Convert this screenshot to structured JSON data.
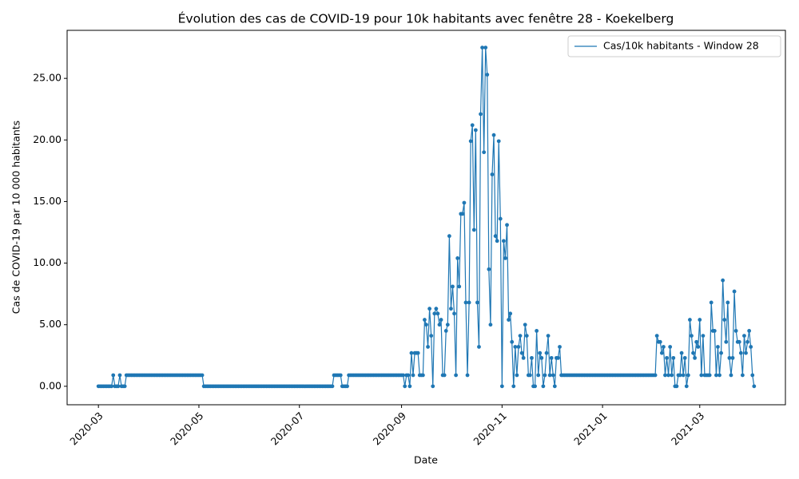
{
  "chart_data": {
    "type": "line",
    "title": "Évolution des cas de COVID-19 pour 10k habitants avec fenêtre 28 - Koekelberg",
    "x_label": "Date",
    "y_label": "Cas de COVID-19 par 10 000 habitants",
    "legend": "upper right",
    "marker": true,
    "xlim": [
      "2020-02-11",
      "2021-04-22"
    ],
    "ylim": [
      -1.5,
      28.9
    ],
    "xticks": [
      {
        "value": "2020-03-01",
        "label": "2020-03"
      },
      {
        "value": "2020-05-01",
        "label": "2020-05"
      },
      {
        "value": "2020-07-01",
        "label": "2020-07"
      },
      {
        "value": "2020-09-01",
        "label": "2020-09"
      },
      {
        "value": "2020-11-01",
        "label": "2020-11"
      },
      {
        "value": "2021-01-01",
        "label": "2021-01"
      },
      {
        "value": "2021-03-01",
        "label": "2021-03"
      }
    ],
    "yticks": [
      {
        "value": 0,
        "label": "0.00"
      },
      {
        "value": 5,
        "label": "5.00"
      },
      {
        "value": 10,
        "label": "10.00"
      },
      {
        "value": 15,
        "label": "15.00"
      },
      {
        "value": 20,
        "label": "20.00"
      },
      {
        "value": 25,
        "label": "25.00"
      }
    ],
    "x": [
      "2020-03-01",
      "2020-03-02",
      "2020-03-03",
      "2020-03-04",
      "2020-03-05",
      "2020-03-06",
      "2020-03-07",
      "2020-03-08",
      "2020-03-09",
      "2020-03-10",
      "2020-03-11",
      "2020-03-12",
      "2020-03-13",
      "2020-03-14",
      "2020-03-15",
      "2020-03-16",
      "2020-03-17",
      "2020-03-18",
      "2020-03-19",
      "2020-03-20",
      "2020-03-21",
      "2020-03-22",
      "2020-03-23",
      "2020-03-24",
      "2020-03-25",
      "2020-03-26",
      "2020-03-27",
      "2020-03-28",
      "2020-03-29",
      "2020-03-30",
      "2020-03-31",
      "2020-04-01",
      "2020-04-02",
      "2020-04-03",
      "2020-04-04",
      "2020-04-05",
      "2020-04-06",
      "2020-04-07",
      "2020-04-08",
      "2020-04-09",
      "2020-04-10",
      "2020-04-11",
      "2020-04-12",
      "2020-04-13",
      "2020-04-14",
      "2020-04-15",
      "2020-04-16",
      "2020-04-17",
      "2020-04-18",
      "2020-04-19",
      "2020-04-20",
      "2020-04-21",
      "2020-04-22",
      "2020-04-23",
      "2020-04-24",
      "2020-04-25",
      "2020-04-26",
      "2020-04-27",
      "2020-04-28",
      "2020-04-29",
      "2020-04-30",
      "2020-05-01",
      "2020-05-02",
      "2020-05-03",
      "2020-05-04",
      "2020-05-05",
      "2020-05-06",
      "2020-05-07",
      "2020-05-08",
      "2020-05-09",
      "2020-05-10",
      "2020-05-11",
      "2020-05-12",
      "2020-05-13",
      "2020-05-14",
      "2020-05-15",
      "2020-05-16",
      "2020-05-17",
      "2020-05-18",
      "2020-05-19",
      "2020-05-20",
      "2020-05-21",
      "2020-05-22",
      "2020-05-23",
      "2020-05-24",
      "2020-05-25",
      "2020-05-26",
      "2020-05-27",
      "2020-05-28",
      "2020-05-29",
      "2020-05-30",
      "2020-05-31",
      "2020-06-01",
      "2020-06-02",
      "2020-06-03",
      "2020-06-04",
      "2020-06-05",
      "2020-06-06",
      "2020-06-07",
      "2020-06-08",
      "2020-06-09",
      "2020-06-10",
      "2020-06-11",
      "2020-06-12",
      "2020-06-13",
      "2020-06-14",
      "2020-06-15",
      "2020-06-16",
      "2020-06-17",
      "2020-06-18",
      "2020-06-19",
      "2020-06-20",
      "2020-06-21",
      "2020-06-22",
      "2020-06-23",
      "2020-06-24",
      "2020-06-25",
      "2020-06-26",
      "2020-06-27",
      "2020-06-28",
      "2020-06-29",
      "2020-06-30",
      "2020-07-01",
      "2020-07-02",
      "2020-07-03",
      "2020-07-04",
      "2020-07-05",
      "2020-07-06",
      "2020-07-07",
      "2020-07-08",
      "2020-07-09",
      "2020-07-10",
      "2020-07-11",
      "2020-07-12",
      "2020-07-13",
      "2020-07-14",
      "2020-07-15",
      "2020-07-16",
      "2020-07-17",
      "2020-07-18",
      "2020-07-19",
      "2020-07-20",
      "2020-07-21",
      "2020-07-22",
      "2020-07-23",
      "2020-07-24",
      "2020-07-25",
      "2020-07-26",
      "2020-07-27",
      "2020-07-28",
      "2020-07-29",
      "2020-07-30",
      "2020-07-31",
      "2020-08-01",
      "2020-08-02",
      "2020-08-03",
      "2020-08-04",
      "2020-08-05",
      "2020-08-06",
      "2020-08-07",
      "2020-08-08",
      "2020-08-09",
      "2020-08-10",
      "2020-08-11",
      "2020-08-12",
      "2020-08-13",
      "2020-08-14",
      "2020-08-15",
      "2020-08-16",
      "2020-08-17",
      "2020-08-18",
      "2020-08-19",
      "2020-08-20",
      "2020-08-21",
      "2020-08-22",
      "2020-08-23",
      "2020-08-24",
      "2020-08-25",
      "2020-08-26",
      "2020-08-27",
      "2020-08-28",
      "2020-08-29",
      "2020-08-30",
      "2020-08-31",
      "2020-09-01",
      "2020-09-02",
      "2020-09-03",
      "2020-09-04",
      "2020-09-05",
      "2020-09-06",
      "2020-09-07",
      "2020-09-08",
      "2020-09-09",
      "2020-09-10",
      "2020-09-11",
      "2020-09-12",
      "2020-09-13",
      "2020-09-14",
      "2020-09-15",
      "2020-09-16",
      "2020-09-17",
      "2020-09-18",
      "2020-09-19",
      "2020-09-20",
      "2020-09-21",
      "2020-09-22",
      "2020-09-23",
      "2020-09-24",
      "2020-09-25",
      "2020-09-26",
      "2020-09-27",
      "2020-09-28",
      "2020-09-29",
      "2020-09-30",
      "2020-10-01",
      "2020-10-02",
      "2020-10-03",
      "2020-10-04",
      "2020-10-05",
      "2020-10-06",
      "2020-10-07",
      "2020-10-08",
      "2020-10-09",
      "2020-10-10",
      "2020-10-11",
      "2020-10-12",
      "2020-10-13",
      "2020-10-14",
      "2020-10-15",
      "2020-10-16",
      "2020-10-17",
      "2020-10-18",
      "2020-10-19",
      "2020-10-20",
      "2020-10-21",
      "2020-10-22",
      "2020-10-23",
      "2020-10-24",
      "2020-10-25",
      "2020-10-26",
      "2020-10-27",
      "2020-10-28",
      "2020-10-29",
      "2020-10-30",
      "2020-10-31",
      "2020-11-01",
      "2020-11-02",
      "2020-11-03",
      "2020-11-04",
      "2020-11-05",
      "2020-11-06",
      "2020-11-07",
      "2020-11-08",
      "2020-11-09",
      "2020-11-10",
      "2020-11-11",
      "2020-11-12",
      "2020-11-13",
      "2020-11-14",
      "2020-11-15",
      "2020-11-16",
      "2020-11-17",
      "2020-11-18",
      "2020-11-19",
      "2020-11-20",
      "2020-11-21",
      "2020-11-22",
      "2020-11-23",
      "2020-11-24",
      "2020-11-25",
      "2020-11-26",
      "2020-11-27",
      "2020-11-28",
      "2020-11-29",
      "2020-11-30",
      "2020-12-01",
      "2020-12-02",
      "2020-12-03",
      "2020-12-04",
      "2020-12-05",
      "2020-12-06",
      "2020-12-07",
      "2020-12-08",
      "2020-12-09",
      "2020-12-10",
      "2020-12-11",
      "2020-12-12",
      "2020-12-13",
      "2020-12-14",
      "2020-12-15",
      "2020-12-16",
      "2020-12-17",
      "2020-12-18",
      "2020-12-19",
      "2020-12-20",
      "2020-12-21",
      "2020-12-22",
      "2020-12-23",
      "2020-12-24",
      "2020-12-25",
      "2020-12-26",
      "2020-12-27",
      "2020-12-28",
      "2020-12-29",
      "2020-12-30",
      "2020-12-31",
      "2021-01-01",
      "2021-01-02",
      "2021-01-03",
      "2021-01-04",
      "2021-01-05",
      "2021-01-06",
      "2021-01-07",
      "2021-01-08",
      "2021-01-09",
      "2021-01-10",
      "2021-01-11",
      "2021-01-12",
      "2021-01-13",
      "2021-01-14",
      "2021-01-15",
      "2021-01-16",
      "2021-01-17",
      "2021-01-18",
      "2021-01-19",
      "2021-01-20",
      "2021-01-21",
      "2021-01-22",
      "2021-01-23",
      "2021-01-24",
      "2021-01-25",
      "2021-01-26",
      "2021-01-27",
      "2021-01-28",
      "2021-01-29",
      "2021-01-30",
      "2021-01-31",
      "2021-02-01",
      "2021-02-02",
      "2021-02-03",
      "2021-02-04",
      "2021-02-05",
      "2021-02-06",
      "2021-02-07",
      "2021-02-08",
      "2021-02-09",
      "2021-02-10",
      "2021-02-11",
      "2021-02-12",
      "2021-02-13",
      "2021-02-14",
      "2021-02-15",
      "2021-02-16",
      "2021-02-17",
      "2021-02-18",
      "2021-02-19",
      "2021-02-20",
      "2021-02-21",
      "2021-02-22",
      "2021-02-23",
      "2021-02-24",
      "2021-02-25",
      "2021-02-26",
      "2021-02-27",
      "2021-02-28",
      "2021-03-01",
      "2021-03-02",
      "2021-03-03",
      "2021-03-04",
      "2021-03-05",
      "2021-03-06",
      "2021-03-07",
      "2021-03-08",
      "2021-03-09",
      "2021-03-10",
      "2021-03-11",
      "2021-03-12",
      "2021-03-13",
      "2021-03-14",
      "2021-03-15",
      "2021-03-16",
      "2021-03-17",
      "2021-03-18",
      "2021-03-19",
      "2021-03-20",
      "2021-03-21",
      "2021-03-22",
      "2021-03-23",
      "2021-03-24",
      "2021-03-25",
      "2021-03-26",
      "2021-03-27",
      "2021-03-28",
      "2021-03-29",
      "2021-03-30",
      "2021-03-31",
      "2021-04-01",
      "2021-04-02",
      "2021-04-03"
    ],
    "series": [
      {
        "name": "Cas/10k habitants - Window 28",
        "color": "#1f77b4",
        "values": [
          0,
          0,
          0,
          0,
          0,
          0,
          0,
          0,
          0,
          0.9,
          0,
          0,
          0,
          0.9,
          0,
          0,
          0,
          0.9,
          0.9,
          0.9,
          0.9,
          0.9,
          0.9,
          0.9,
          0.9,
          0.9,
          0.9,
          0.9,
          0.9,
          0.9,
          0.9,
          0.9,
          0.9,
          0.9,
          0.9,
          0.9,
          0.9,
          0.9,
          0.9,
          0.9,
          0.9,
          0.9,
          0.9,
          0.9,
          0.9,
          0.9,
          0.9,
          0.9,
          0.9,
          0.9,
          0.9,
          0.9,
          0.9,
          0.9,
          0.9,
          0.9,
          0.9,
          0.9,
          0.9,
          0.9,
          0.9,
          0.9,
          0.9,
          0.9,
          0,
          0,
          0,
          0,
          0,
          0,
          0,
          0,
          0,
          0,
          0,
          0,
          0,
          0,
          0,
          0,
          0,
          0,
          0,
          0,
          0,
          0,
          0,
          0,
          0,
          0,
          0,
          0,
          0,
          0,
          0,
          0,
          0,
          0,
          0,
          0,
          0,
          0,
          0,
          0,
          0,
          0,
          0,
          0,
          0,
          0,
          0,
          0,
          0,
          0,
          0,
          0,
          0,
          0,
          0,
          0,
          0,
          0,
          0,
          0,
          0,
          0,
          0,
          0,
          0,
          0,
          0,
          0,
          0,
          0,
          0,
          0,
          0,
          0,
          0,
          0,
          0,
          0,
          0,
          0.9,
          0.9,
          0.9,
          0.9,
          0.9,
          0,
          0,
          0,
          0,
          0.9,
          0.9,
          0.9,
          0.9,
          0.9,
          0.9,
          0.9,
          0.9,
          0.9,
          0.9,
          0.9,
          0.9,
          0.9,
          0.9,
          0.9,
          0.9,
          0.9,
          0.9,
          0.9,
          0.9,
          0.9,
          0.9,
          0.9,
          0.9,
          0.9,
          0.9,
          0.9,
          0.9,
          0.9,
          0.9,
          0.9,
          0.9,
          0.9,
          0.9,
          0,
          0.9,
          0.9,
          0,
          2.7,
          0.9,
          2.7,
          2.7,
          2.7,
          0.9,
          0.9,
          0.9,
          5.4,
          5.0,
          3.2,
          6.3,
          4.1,
          0,
          5.9,
          6.3,
          5.9,
          5.0,
          5.4,
          0.9,
          0.9,
          4.5,
          5.0,
          12.2,
          6.3,
          8.1,
          5.9,
          0.9,
          10.4,
          8.1,
          14.0,
          14.0,
          14.9,
          6.8,
          0.9,
          6.8,
          19.9,
          21.2,
          12.7,
          20.8,
          6.8,
          3.2,
          22.1,
          27.5,
          19.0,
          27.5,
          25.3,
          9.5,
          5.0,
          17.2,
          20.4,
          12.2,
          11.8,
          19.9,
          13.6,
          0,
          11.8,
          10.4,
          13.1,
          5.4,
          5.9,
          3.6,
          0,
          3.2,
          0.9,
          3.2,
          4.1,
          2.7,
          2.3,
          5.0,
          4.1,
          0.9,
          0.9,
          2.3,
          0,
          0,
          4.5,
          0.9,
          2.7,
          2.3,
          0,
          0.9,
          2.7,
          4.1,
          0.9,
          2.3,
          0.9,
          0,
          2.3,
          2.3,
          3.2,
          0.9,
          0.9,
          0.9,
          0.9,
          0.9,
          0.9,
          0.9,
          0.9,
          0.9,
          0.9,
          0.9,
          0.9,
          0.9,
          0.9,
          0.9,
          0.9,
          0.9,
          0.9,
          0.9,
          0.9,
          0.9,
          0.9,
          0.9,
          0.9,
          0.9,
          0.9,
          0.9,
          0.9,
          0.9,
          0.9,
          0.9,
          0.9,
          0.9,
          0.9,
          0.9,
          0.9,
          0.9,
          0.9,
          0.9,
          0.9,
          0.9,
          0.9,
          0.9,
          0.9,
          0.9,
          0.9,
          0.9,
          0.9,
          0.9,
          0.9,
          0.9,
          0.9,
          0.9,
          0.9,
          0.9,
          0.9,
          0.9,
          0.9,
          4.1,
          3.6,
          3.6,
          2.7,
          3.2,
          0.9,
          2.3,
          0.9,
          3.2,
          0.9,
          2.3,
          0,
          0,
          0.9,
          0.9,
          2.7,
          0.9,
          2.3,
          0,
          0.9,
          5.4,
          4.1,
          2.7,
          2.3,
          3.6,
          3.2,
          5.4,
          0.9,
          4.1,
          0.9,
          0.9,
          0.9,
          0.9,
          6.8,
          4.5,
          4.5,
          0.9,
          3.2,
          0.9,
          2.7,
          8.6,
          5.4,
          3.6,
          6.8,
          2.3,
          0.9,
          2.3,
          7.7,
          4.5,
          3.6,
          3.6,
          2.7,
          0.9,
          4.1,
          2.7,
          3.6,
          4.5,
          3.2,
          0.9,
          0
        ]
      }
    ]
  }
}
